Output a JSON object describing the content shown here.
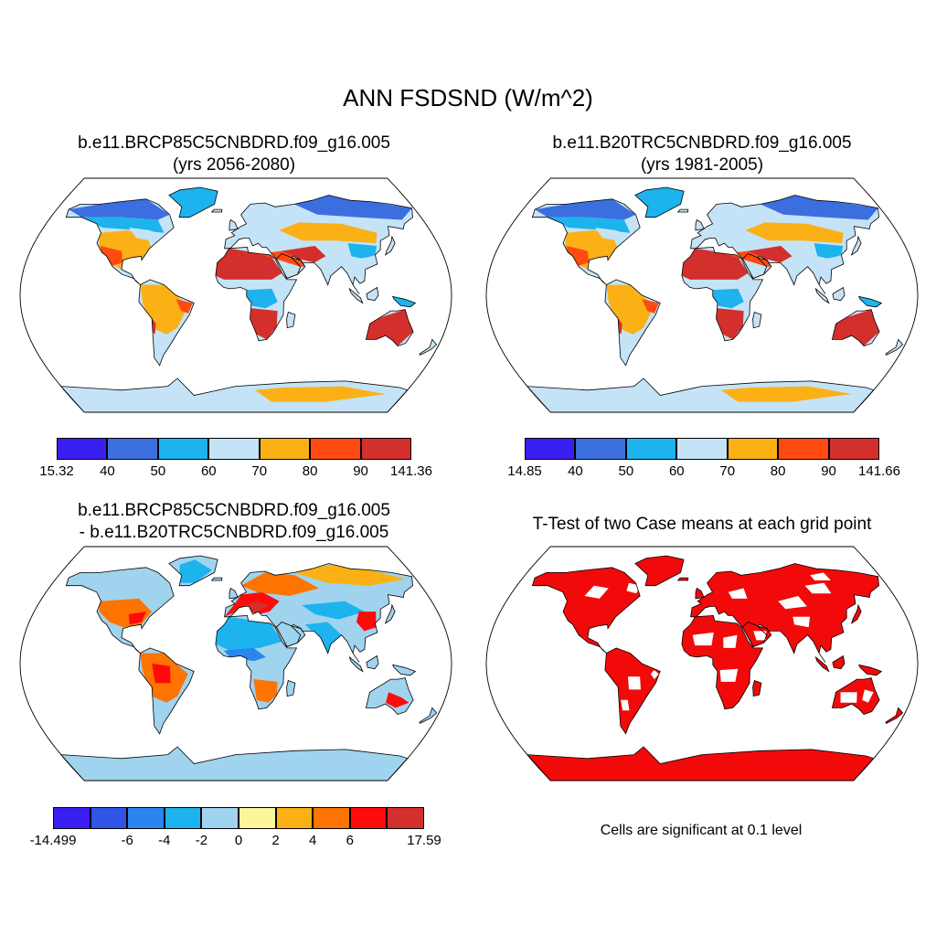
{
  "title": "ANN FSDSND (W/m^2)",
  "panels": {
    "tl": {
      "title_line1": "b.e11.BRCP85C5CNBDRD.f09_g16.005",
      "title_line2": "(yrs 2056-2080)",
      "map_name": "map-future-case",
      "palette": "abs",
      "colorbar": {
        "colors": [
          "#3a1ff2",
          "#3b6fe0",
          "#1cb3ee",
          "#c4e3f6",
          "#fbb116",
          "#ff4a12",
          "#d32f2c"
        ],
        "labels": [
          "15.32",
          "40",
          "50",
          "60",
          "70",
          "80",
          "90",
          "141.36"
        ]
      }
    },
    "tr": {
      "title_line1": "b.e11.B20TRC5CNBDRD.f09_g16.005",
      "title_line2": "(yrs 1981-2005)",
      "map_name": "map-historical-case",
      "palette": "abs",
      "colorbar": {
        "colors": [
          "#3a1ff2",
          "#3b6fe0",
          "#1cb3ee",
          "#c4e3f6",
          "#fbb116",
          "#ff4a12",
          "#d32f2c"
        ],
        "labels": [
          "14.85",
          "40",
          "50",
          "60",
          "70",
          "80",
          "90",
          "141.66"
        ]
      }
    },
    "bl": {
      "title_line1": "b.e11.BRCP85C5CNBDRD.f09_g16.005",
      "title_line2": "- b.e11.B20TRC5CNBDRD.f09_g16.005",
      "map_name": "map-difference",
      "palette": "diff",
      "colorbar": {
        "colors": [
          "#3a1ff2",
          "#2f54e6",
          "#2a86ee",
          "#1cb3ee",
          "#9fd3ee",
          "#fcf59a",
          "#fbb116",
          "#ff7300",
          "#ff0a0a",
          "#d32f2c"
        ],
        "labels": [
          "-14.499",
          "",
          "-6",
          "-4",
          "-2",
          "0",
          "2",
          "4",
          "6",
          "",
          "17.59"
        ]
      }
    },
    "br": {
      "title_line1": "T-Test of two Case means at each grid point",
      "map_name": "map-ttest",
      "palette": "sig",
      "significance_color": "#f20a0a",
      "note": "Cells are significant at 0.1 level"
    }
  }
}
